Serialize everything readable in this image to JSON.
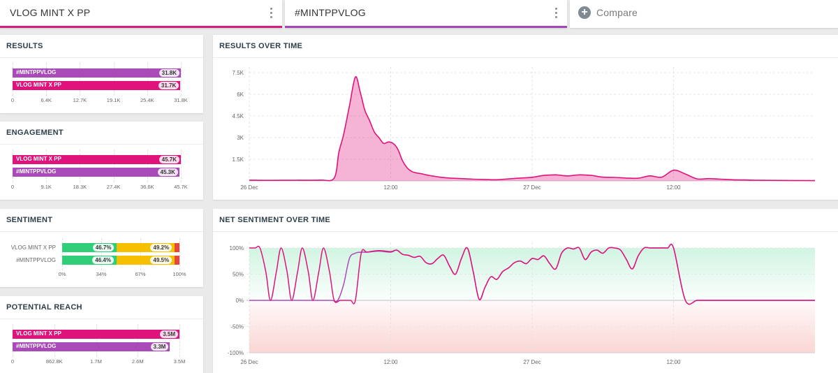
{
  "tabs": [
    {
      "label": "VLOG MINT X PP",
      "color": "#d81b7c"
    },
    {
      "label": "#MINTPPVLOG",
      "color": "#a347b8"
    }
  ],
  "compare_label": "Compare",
  "colors": {
    "pink": "#e0137c",
    "purple": "#a94ab9",
    "positive": "#2fcf7a",
    "neutral": "#f5c000",
    "negative": "#e8453c"
  },
  "results": {
    "title": "RESULTS",
    "bars": [
      {
        "label": "#MINTPPVLOG",
        "value_label": "31.8K",
        "value": 31800,
        "color": "purple"
      },
      {
        "label": "VLOG MINT X PP",
        "value_label": "31.7K",
        "value": 31700,
        "color": "pink"
      }
    ],
    "max": 31800,
    "ticks": [
      "0",
      "6.4K",
      "12.7K",
      "19.1K",
      "25.4K",
      "31.8K"
    ]
  },
  "engagement": {
    "title": "ENGAGEMENT",
    "bars": [
      {
        "label": "VLOG MINT X PP",
        "value_label": "45.7K",
        "value": 45700,
        "color": "pink"
      },
      {
        "label": "#MINTPPVLOG",
        "value_label": "45.3K",
        "value": 45300,
        "color": "purple"
      }
    ],
    "max": 45700,
    "ticks": [
      "0",
      "9.1K",
      "18.3K",
      "27.4K",
      "36.6K",
      "45.7K"
    ]
  },
  "sentiment": {
    "title": "SENTIMENT",
    "rows": [
      {
        "label": "VLOG MINT X PP",
        "positive": 46.7,
        "neutral": 49.2,
        "negative": 4.1,
        "pos_label": "46.7%",
        "neu_label": "49.2%"
      },
      {
        "label": "#MINTPPVLOG",
        "positive": 46.4,
        "neutral": 49.5,
        "negative": 4.1,
        "pos_label": "46.4%",
        "neu_label": "49.5%"
      }
    ],
    "ticks": [
      "0%",
      "34%",
      "67%",
      "100%"
    ]
  },
  "reach": {
    "title": "POTENTIAL REACH",
    "bars": [
      {
        "label": "VLOG MINT X PP",
        "value_label": "3.5M",
        "value": 3.5,
        "color": "pink"
      },
      {
        "label": "#MINTPPVLOG",
        "value_label": "3.3M",
        "value": 3.3,
        "color": "purple"
      }
    ],
    "max": 3.5,
    "ticks": [
      "0",
      "862.8K",
      "1.7M",
      "2.6M",
      "3.5M"
    ]
  },
  "results_over_time": {
    "title": "RESULTS OVER TIME",
    "chart_data": {
      "type": "area",
      "y_ticks": [
        "7.5K",
        "6K",
        "4.5K",
        "3K",
        "1.5K"
      ],
      "ylim": [
        0,
        7500
      ],
      "x_tick_labels": [
        "26 Dec",
        "12:00",
        "27 Dec",
        "12:00"
      ],
      "x_tick_hours": [
        0,
        12,
        24,
        36
      ],
      "xlim_hours": [
        0,
        48
      ],
      "series": [
        {
          "color": "pink",
          "x_hours": [
            0,
            2,
            4,
            6,
            7.2,
            7.6,
            8,
            8.5,
            9,
            9.4,
            9.8,
            10.2,
            10.6,
            11,
            11.4,
            11.8,
            12.2,
            12.6,
            13,
            13.4,
            13.8,
            14.2,
            14.6,
            15,
            15.5,
            16,
            16.5,
            17,
            18,
            19,
            20,
            21,
            22,
            23,
            24,
            25,
            26,
            27,
            28,
            29,
            30,
            31,
            32,
            33,
            34,
            35,
            36,
            37,
            38,
            39,
            40,
            41,
            42,
            43,
            44,
            46,
            48
          ],
          "values": [
            50,
            40,
            50,
            60,
            200,
            2000,
            3200,
            5200,
            7200,
            6200,
            4900,
            4200,
            3400,
            3000,
            2600,
            2700,
            2600,
            2200,
            1400,
            900,
            650,
            550,
            500,
            420,
            350,
            280,
            230,
            200,
            160,
            120,
            100,
            80,
            140,
            200,
            250,
            380,
            420,
            350,
            420,
            380,
            260,
            240,
            200,
            190,
            350,
            260,
            740,
            480,
            140,
            160,
            120,
            80,
            70,
            50,
            40,
            30,
            20
          ]
        }
      ]
    }
  },
  "net_sentiment_over_time": {
    "title": "NET SENTIMENT OVER TIME",
    "chart_data": {
      "type": "line",
      "y_ticks": [
        "100%",
        "50%",
        "0%",
        "-50%",
        "-100%"
      ],
      "ylim": [
        -100,
        100
      ],
      "x_tick_labels": [
        "26 Dec",
        "12:00",
        "27 Dec",
        "12:00"
      ],
      "x_tick_hours": [
        0,
        12,
        24,
        36
      ],
      "xlim_hours": [
        0,
        48
      ],
      "series": [
        {
          "color": "pink",
          "x_hours": [
            0,
            0.5,
            0.9,
            1.4,
            1.8,
            2.3,
            2.7,
            3.2,
            3.6,
            4.1,
            4.5,
            5,
            5.4,
            5.9,
            6.3,
            6.8,
            7.2,
            7.7,
            8.1,
            8.6,
            9,
            9.5,
            10,
            11,
            12,
            12.5,
            13,
            13.5,
            14,
            14.5,
            15,
            15.5,
            16,
            16.5,
            17,
            17.5,
            18,
            18.5,
            19,
            19.5,
            20,
            20.5,
            21,
            21.5,
            22,
            22.5,
            23,
            23.5,
            24,
            24.5,
            25,
            25.5,
            26,
            26.5,
            27,
            27.5,
            28,
            28.5,
            29,
            29.5,
            30,
            30.5,
            31,
            31.5,
            32,
            32.5,
            33,
            33.5,
            34,
            34.5,
            35,
            35.5,
            36,
            37,
            38,
            39,
            40,
            48
          ],
          "values": [
            100,
            100,
            100,
            55,
            0,
            55,
            100,
            55,
            0,
            55,
            100,
            55,
            0,
            55,
            100,
            55,
            0,
            0,
            0,
            0,
            0,
            90,
            92,
            95,
            93,
            96,
            88,
            86,
            82,
            84,
            72,
            70,
            80,
            86,
            65,
            50,
            80,
            100,
            55,
            2,
            25,
            45,
            40,
            55,
            62,
            72,
            75,
            70,
            80,
            78,
            85,
            70,
            60,
            90,
            100,
            98,
            100,
            78,
            92,
            96,
            90,
            100,
            100,
            96,
            78,
            60,
            85,
            100,
            100,
            100,
            100,
            100,
            100,
            0,
            0,
            0,
            0,
            0
          ]
        },
        {
          "color": "purple",
          "x_hours": [
            0,
            2,
            4,
            6,
            7,
            7.5,
            8,
            8.5,
            9,
            9.5,
            10,
            11,
            12,
            12.5,
            13,
            13.5,
            14,
            14.5,
            15,
            15.5,
            16,
            16.5,
            17,
            17.5,
            18,
            18.5,
            19,
            19.5,
            20,
            20.5,
            21,
            21.5,
            22,
            22.5,
            23,
            23.5,
            24,
            24.5,
            25,
            25.5,
            26,
            26.5,
            27,
            27.5,
            28,
            28.5,
            29,
            29.5,
            30,
            30.5,
            31,
            31.5,
            32,
            32.5,
            33,
            33.5,
            34,
            34.5,
            35,
            35.5,
            36,
            37,
            38,
            39,
            40,
            48
          ],
          "values": [
            0,
            0,
            0,
            0,
            0,
            0,
            30,
            80,
            90,
            92,
            92,
            94,
            92,
            96,
            88,
            86,
            82,
            84,
            72,
            70,
            80,
            86,
            65,
            50,
            80,
            100,
            55,
            2,
            25,
            45,
            40,
            55,
            62,
            72,
            75,
            70,
            80,
            78,
            85,
            70,
            60,
            90,
            100,
            98,
            100,
            78,
            92,
            96,
            90,
            100,
            100,
            96,
            78,
            60,
            85,
            100,
            100,
            100,
            100,
            100,
            100,
            0,
            0,
            0,
            0,
            0
          ]
        }
      ]
    }
  }
}
